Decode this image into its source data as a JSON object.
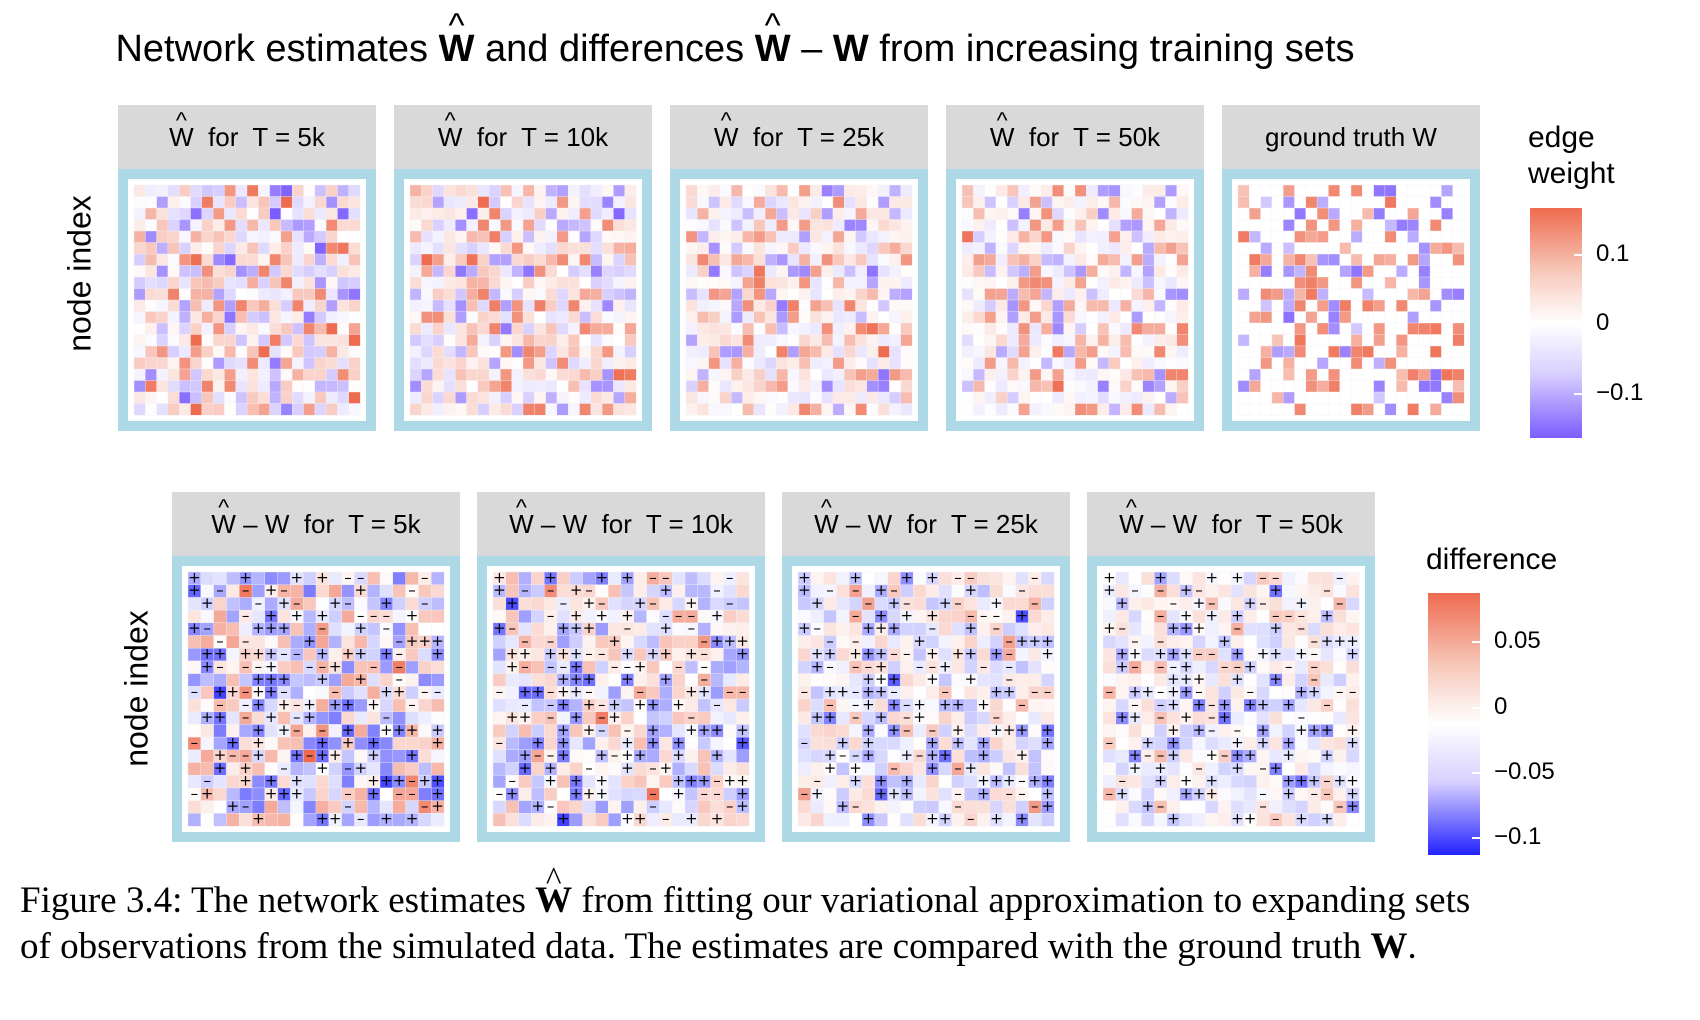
{
  "figure": {
    "title_part1": "Network estimates ",
    "title_sym1": "W",
    "title_part2": " and differences ",
    "title_sym2": "W",
    "title_part3": " – ",
    "title_sym3": "W",
    "title_part4": " from increasing training sets"
  },
  "top_row": {
    "ylabel": "node index",
    "panels": [
      {
        "hat": "W",
        "label": "  for  T = 5k"
      },
      {
        "hat": "W",
        "label": "  for  T = 10k"
      },
      {
        "hat": "W",
        "label": "  for  T = 25k"
      },
      {
        "hat": "W",
        "label": "  for  T = 50k"
      },
      {
        "hat": "",
        "label": "ground truth W"
      }
    ],
    "legend": {
      "title_line1": "edge",
      "title_line2": "weight",
      "ticks": [
        "0.1",
        "0",
        "−0.1"
      ],
      "high_color": "#ee6b4f",
      "mid_color": "#ffffff",
      "low_color": "#7b5cff"
    }
  },
  "bottom_row": {
    "ylabel": "node index",
    "panels": [
      {
        "hat": "W",
        "label": " – W  for  T = 5k"
      },
      {
        "hat": "W",
        "label": " – W  for  T = 10k"
      },
      {
        "hat": "W",
        "label": " – W  for  T = 25k"
      },
      {
        "hat": "W",
        "label": " – W  for  T = 50k"
      }
    ],
    "legend": {
      "title": "difference",
      "ticks": [
        "0.05",
        "0",
        "−0.05",
        "−0.1"
      ],
      "high_color": "#ee6b4f",
      "mid_color": "#ffffff",
      "low_color": "#2222ff"
    },
    "marks": [
      "+",
      "–"
    ]
  },
  "caption": {
    "line1_a": "Figure 3.4: The network estimates ",
    "line1_sym": "W",
    "line1_b": " from fitting our variational approximation to expanding sets",
    "line2_a": "of observations from the simulated data. The estimates are compared with the ground truth ",
    "line2_sym": "W",
    "line2_b": "."
  }
}
